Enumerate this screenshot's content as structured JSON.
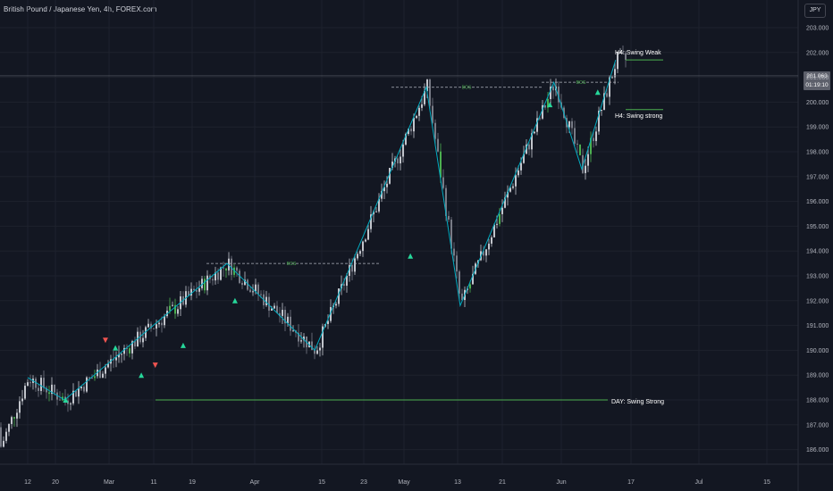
{
  "header": {
    "title": "British Pound / Japanese Yen, 4h, FOREX.com",
    "currency": "JPY"
  },
  "current_price": {
    "price": "201.063",
    "countdown": "01:19:10"
  },
  "chart_data": {
    "type": "candlestick",
    "ylim": [
      185.4,
      203.6
    ],
    "price_ticks": [
      "203.000",
      "202.000",
      "201.000",
      "200.000",
      "199.000",
      "198.000",
      "197.000",
      "196.000",
      "195.000",
      "194.000",
      "193.000",
      "192.000",
      "191.000",
      "190.000",
      "189.000",
      "188.000",
      "187.000",
      "186.000"
    ],
    "time_ticks": [
      "12",
      "20",
      "Mar",
      "11",
      "19",
      "Apr",
      "15",
      "23",
      "May",
      "13",
      "21",
      "Jun",
      "17",
      "Jul",
      "15"
    ],
    "zigzag": [
      {
        "t": 1.0,
        "p": 188.9
      },
      {
        "t": 2.85,
        "p": 188.0
      },
      {
        "t": 11.0,
        "p": 193.5
      },
      {
        "t": 15.4,
        "p": 190.0
      },
      {
        "t": 21.0,
        "p": 200.6
      },
      {
        "t": 22.7,
        "p": 191.8
      },
      {
        "t": 27.4,
        "p": 200.8
      },
      {
        "t": 28.8,
        "p": 197.3
      },
      {
        "t": 30.5,
        "p": 201.7
      }
    ],
    "levels": [
      {
        "label": "DAY: Swing Strong",
        "price": 188.0,
        "color": "#4caf50"
      },
      {
        "label": "H4: Swing Weak",
        "price": 201.7,
        "color": "#4caf50"
      },
      {
        "label": "H4: Swing strong",
        "price": 199.7,
        "color": "#4caf50"
      }
    ],
    "bos_lines": [
      {
        "label": "BOS",
        "price": 193.5
      },
      {
        "label": "BOS",
        "price": 200.6
      },
      {
        "label": "BOS",
        "price": 200.8
      }
    ],
    "signals": [
      {
        "type": "buy",
        "t": 2.9,
        "p": 188.0
      },
      {
        "type": "sell",
        "t": 4.9,
        "p": 190.4
      },
      {
        "type": "buy",
        "t": 5.4,
        "p": 190.1
      },
      {
        "type": "buy",
        "t": 6.7,
        "p": 189.0
      },
      {
        "type": "sell",
        "t": 7.4,
        "p": 189.4
      },
      {
        "type": "buy",
        "t": 8.8,
        "p": 190.2
      },
      {
        "type": "buy",
        "t": 11.4,
        "p": 192.0
      },
      {
        "type": "buy",
        "t": 20.2,
        "p": 193.8
      },
      {
        "type": "buy",
        "t": 27.2,
        "p": 199.9
      },
      {
        "type": "buy",
        "t": 29.6,
        "p": 200.4
      }
    ],
    "colors": {
      "candle_up": "#c2c5cc",
      "candle_down": "#787b86",
      "candle_highlight": "#4caf50",
      "zigzag": "#00acc1",
      "bos": "#b2b5be",
      "buy": "#26d79a",
      "sell": "#ef5350"
    }
  }
}
